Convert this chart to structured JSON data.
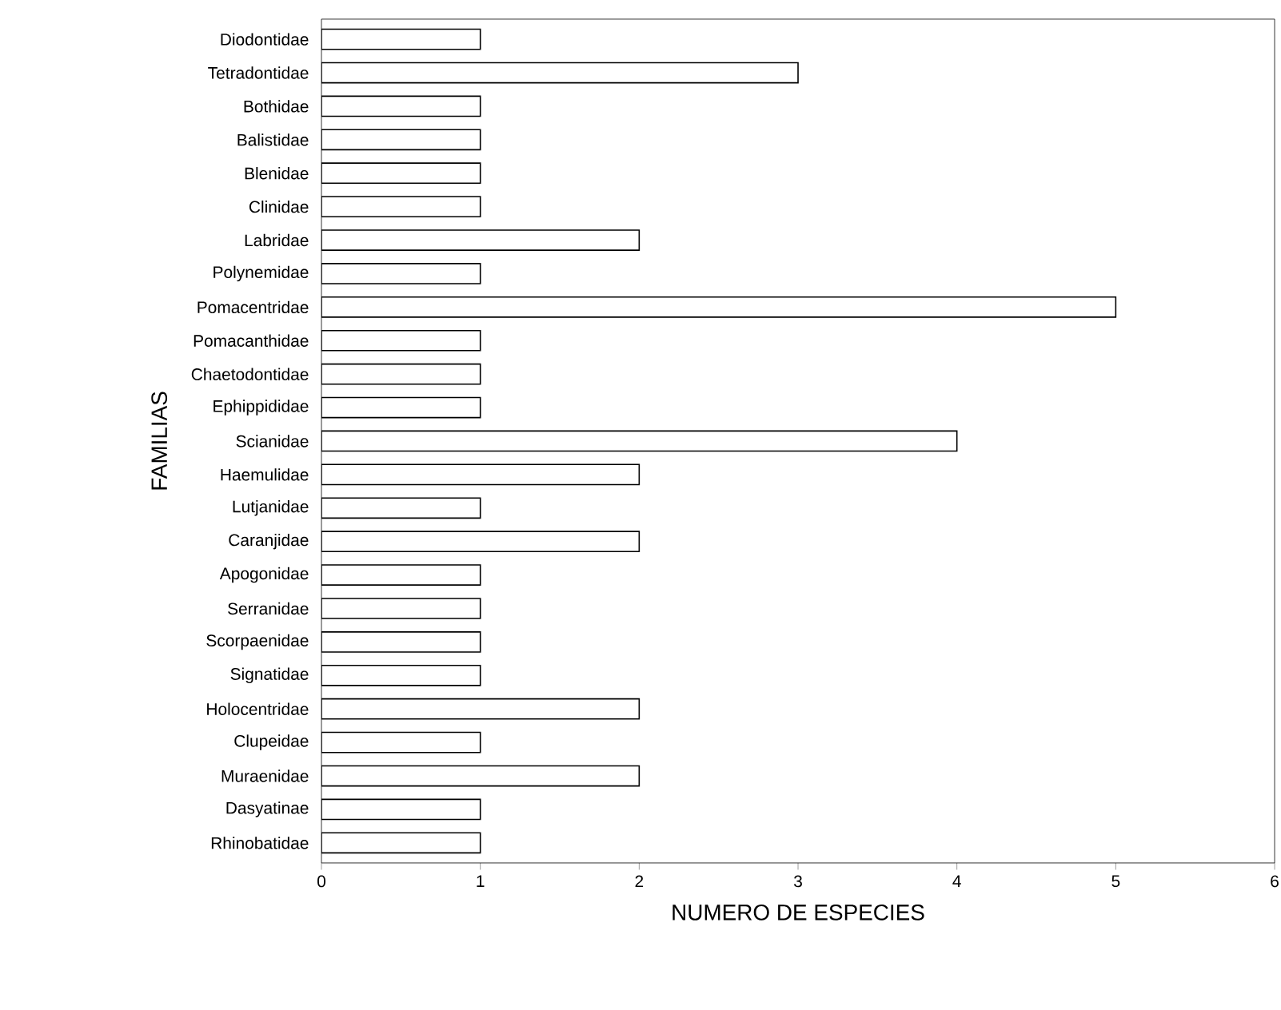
{
  "chart_data": {
    "type": "bar",
    "orientation": "horizontal",
    "xlabel": "NUMERO DE ESPECIES",
    "ylabel": "FAMILIAS",
    "categories": [
      "Diodontidae",
      "Tetradontidae",
      "Bothidae",
      "Balistidae",
      "Blenidae",
      "Clinidae",
      "Labridae",
      "Polynemidae",
      "Pomacentridae",
      "Pomacanthidae",
      "Chaetodontidae",
      "Ephippididae",
      "Scianidae",
      "Haemulidae",
      "Lutjanidae",
      "Caranjidae",
      "Apogonidae",
      "Serranidae",
      "Scorpaenidae",
      "Signatidae",
      "Holocentridae",
      "Clupeidae",
      "Muraenidae",
      "Dasyatinae",
      "Rhinobatidae"
    ],
    "values": [
      1,
      3,
      1,
      1,
      1,
      1,
      2,
      1,
      5,
      1,
      1,
      1,
      4,
      2,
      1,
      2,
      1,
      1,
      1,
      1,
      2,
      1,
      2,
      1,
      1
    ],
    "color": "#ffffff",
    "xlim": [
      0,
      6
    ],
    "xticks": [
      0,
      1,
      2,
      3,
      4,
      5,
      6
    ]
  }
}
